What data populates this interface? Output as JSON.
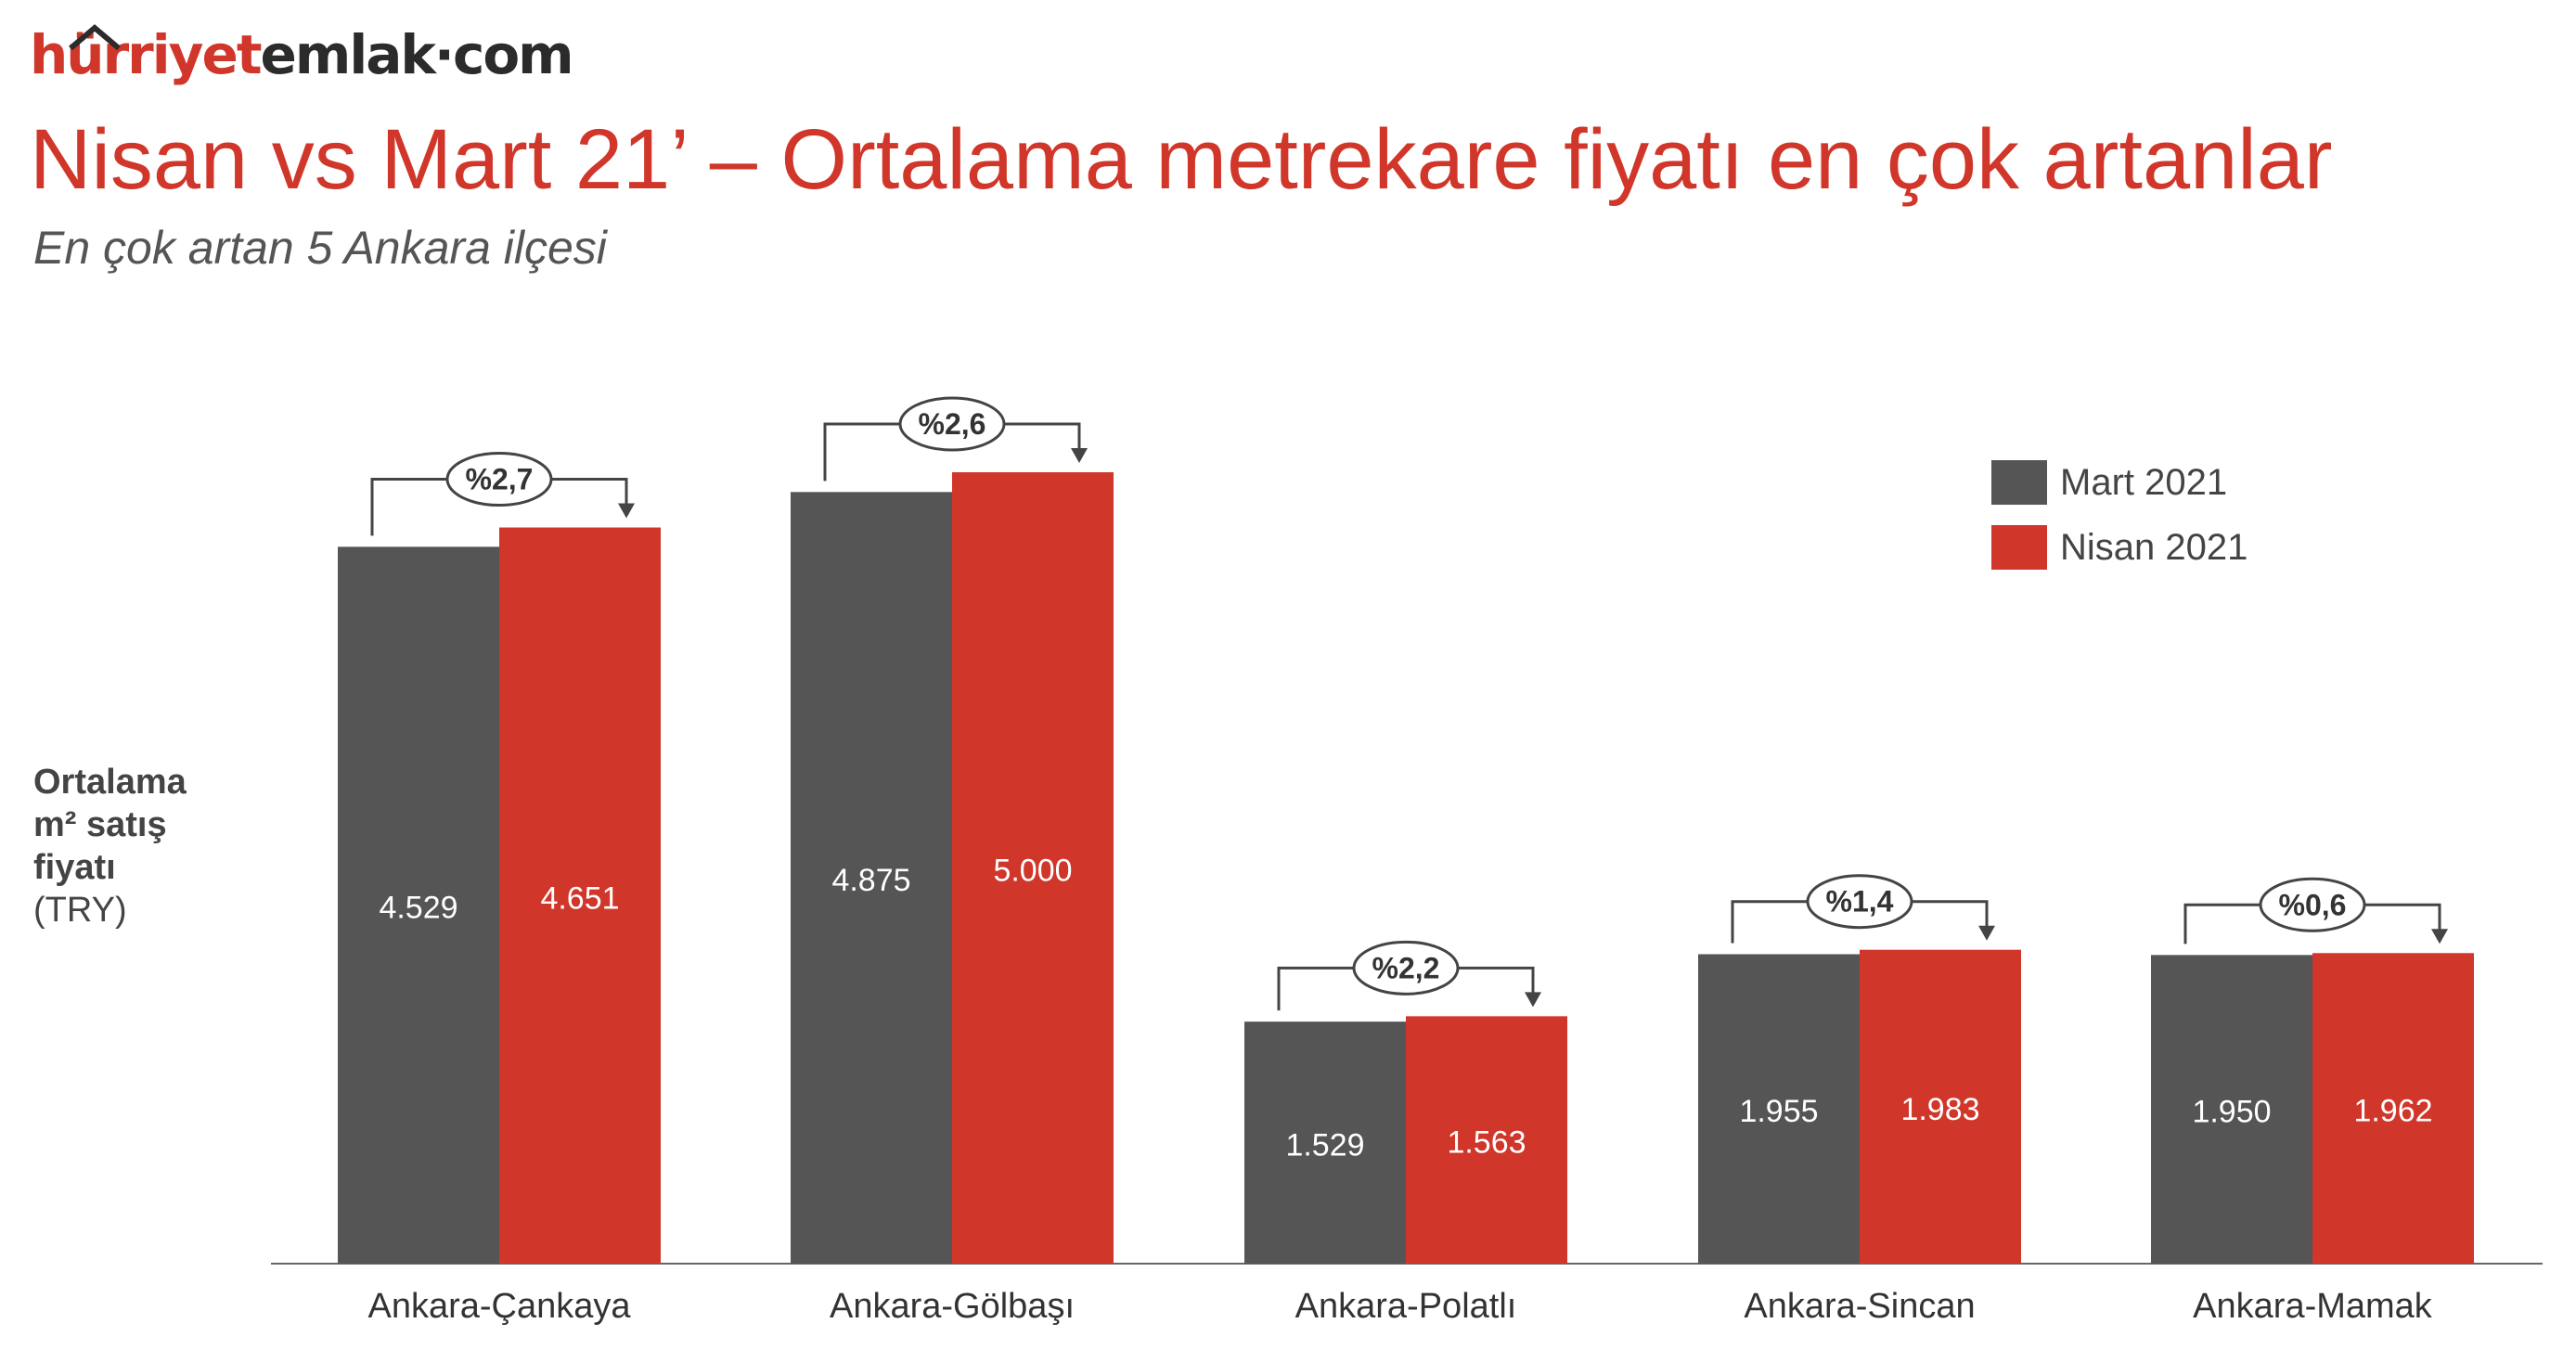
{
  "logo": {
    "part1": "hürriyet",
    "part2": "emlak·com"
  },
  "title": "Nisan vs Mart 21’ – Ortalama metrekare fiyatı en çok artanlar",
  "subtitle": "En çok artan 5 Ankara ilçesi",
  "ylabel": {
    "line1": "Ortalama",
    "line2": "m² satış",
    "line3": "fiyatı",
    "line4": "(TRY)"
  },
  "colors": {
    "mart": "#555555",
    "nisan": "#d0362a",
    "accent": "#d0362a"
  },
  "chart_data": {
    "type": "bar",
    "title": "Nisan vs Mart 21’ – Ortalama metrekare fiyatı en çok artanlar",
    "subtitle": "En çok artan 5 Ankara ilçesi",
    "ylabel": "Ortalama m² satış fiyatı (TRY)",
    "xlabel": "",
    "categories": [
      "Ankara-Çankaya",
      "Ankara-Gölbaşı",
      "Ankara-Polatlı",
      "Ankara-Sincan",
      "Ankara-Mamak"
    ],
    "series": [
      {
        "name": "Mart 2021",
        "values": [
          4529,
          4875,
          1529,
          1955,
          1950
        ],
        "labels": [
          "4.529",
          "4.875",
          "1.529",
          "1.955",
          "1.950"
        ]
      },
      {
        "name": "Nisan 2021",
        "values": [
          4651,
          5000,
          1563,
          1983,
          1962
        ],
        "labels": [
          "4.651",
          "5.000",
          "1.563",
          "1.983",
          "1.962"
        ]
      }
    ],
    "changes": [
      "%2,7",
      "%2,6",
      "%2,2",
      "%1,4",
      "%0,6"
    ],
    "ylim": [
      0,
      5500
    ],
    "grid": false,
    "legend_position": "top-right"
  }
}
